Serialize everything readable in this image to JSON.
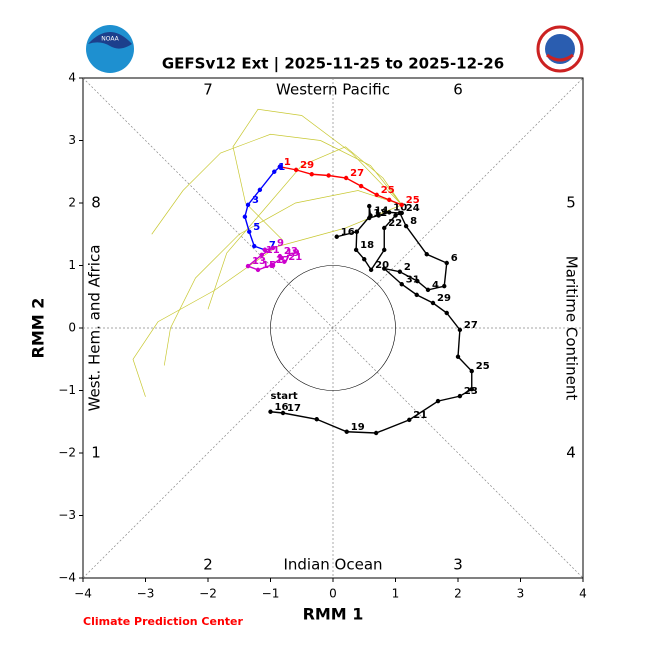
{
  "chart_data": {
    "type": "line",
    "title": "GEFSv12 Ext | 2025-11-25 to 2025-12-26",
    "xlabel": "RMM 1",
    "ylabel": "RMM 2",
    "xlim": [
      -4,
      4
    ],
    "ylim": [
      -4,
      4
    ],
    "xticks": [
      {
        "value": -4,
        "label": "−4"
      },
      {
        "value": -3,
        "label": "−3"
      },
      {
        "value": -2,
        "label": "−2"
      },
      {
        "value": -1,
        "label": "−1"
      },
      0,
      1,
      2,
      3,
      4
    ],
    "yticks": [
      {
        "value": -4,
        "label": "−4"
      },
      {
        "value": -3,
        "label": "−3"
      },
      {
        "value": -2,
        "label": "−2"
      },
      {
        "value": -1,
        "label": "−1"
      },
      0,
      1,
      2,
      3,
      4
    ],
    "regions": [
      "Western Pacific",
      "Maritime Continent",
      "Indian Ocean",
      "West. Hem. and Africa"
    ],
    "phases": [
      "1",
      "2",
      "3",
      "4",
      "5",
      "6",
      "7",
      "8"
    ],
    "start_label": "start",
    "footer": "Climate Prediction Center",
    "ensemble_color": "#c8c832",
    "ensemble": [
      {
        "x": [
          1.1,
          0.6,
          -0.2,
          -1.0,
          -1.8,
          -2.4,
          -2.9
        ],
        "y": [
          1.97,
          2.6,
          3.0,
          3.1,
          2.8,
          2.2,
          1.5
        ]
      },
      {
        "x": [
          1.1,
          0.4,
          -0.6,
          -1.5,
          -2.2,
          -2.6,
          -2.7
        ],
        "y": [
          1.97,
          2.2,
          2.0,
          1.5,
          0.8,
          0.0,
          -0.6
        ]
      },
      {
        "x": [
          1.1,
          0.3,
          -0.5,
          -1.2,
          -1.6,
          -1.4,
          -0.8
        ],
        "y": [
          1.97,
          2.8,
          3.4,
          3.5,
          2.9,
          2.0,
          1.4
        ]
      },
      {
        "x": [
          1.1,
          0.8,
          0.2,
          -0.5,
          -1.1,
          -1.7,
          -2.0
        ],
        "y": [
          1.97,
          2.4,
          2.9,
          2.6,
          1.9,
          1.2,
          0.3
        ]
      },
      {
        "x": [
          1.1,
          0.2,
          -0.9,
          -1.9,
          -2.8,
          -3.2,
          -3.0
        ],
        "y": [
          1.97,
          1.6,
          1.3,
          0.6,
          0.1,
          -0.5,
          -1.1
        ]
      }
    ],
    "series": [
      {
        "color": "#000000",
        "x": [
          -1.0,
          -0.8,
          -0.26,
          0.22,
          0.69,
          1.22,
          1.68,
          2.03,
          2.22,
          2.22,
          2.0,
          2.03,
          1.82,
          1.6,
          1.34,
          1.1,
          0.82,
          1.07,
          1.35,
          1.52,
          1.78,
          1.82,
          1.5,
          1.17,
          1.07,
          0.9,
          0.73,
          0.58,
          0.58,
          0.6,
          0.38,
          0.06,
          0.38,
          0.37,
          0.5,
          0.61,
          0.82,
          0.82,
          1.0,
          1.1
        ],
        "y": [
          -1.34,
          -1.36,
          -1.46,
          -1.66,
          -1.68,
          -1.47,
          -1.17,
          -1.09,
          -0.98,
          -0.69,
          -0.46,
          -0.03,
          0.24,
          0.4,
          0.53,
          0.7,
          0.95,
          0.9,
          0.75,
          0.61,
          0.67,
          1.04,
          1.18,
          1.63,
          1.84,
          1.85,
          1.8,
          1.76,
          1.95,
          1.8,
          1.54,
          1.46,
          1.54,
          1.25,
          1.1,
          0.93,
          1.25,
          1.6,
          1.8,
          1.84
        ],
        "labels": [
          "16",
          "17",
          null,
          "19",
          null,
          "21",
          null,
          "23",
          null,
          "25",
          null,
          "27",
          null,
          "29",
          null,
          "31",
          null,
          "2",
          null,
          "4",
          null,
          "6",
          null,
          "8",
          null,
          "10",
          null,
          "12",
          null,
          "14",
          null,
          "16",
          null,
          "18",
          null,
          "20",
          null,
          "22",
          null,
          "24"
        ]
      },
      {
        "color": "#ff0000",
        "x": [
          1.1,
          0.9,
          0.7,
          0.45,
          0.21,
          -0.07,
          -0.34,
          -0.59,
          -0.85
        ],
        "y": [
          1.97,
          2.05,
          2.13,
          2.27,
          2.4,
          2.44,
          2.46,
          2.53,
          2.58
        ],
        "labels": [
          "25",
          null,
          "25",
          null,
          "27",
          null,
          null,
          "29",
          "1"
        ]
      },
      {
        "color": "#0000ff",
        "x": [
          -0.85,
          -0.94,
          -1.17,
          -1.36,
          -1.41,
          -1.34,
          -1.26,
          -1.09
        ],
        "y": [
          2.58,
          2.5,
          2.21,
          1.97,
          1.78,
          1.54,
          1.31,
          1.25
        ],
        "labels": [
          null,
          "1",
          null,
          "3",
          null,
          "5",
          null,
          "7"
        ]
      },
      {
        "color": "#cc00cc",
        "x": [
          -1.09,
          -0.96,
          -1.14,
          -1.36,
          -1.2,
          -0.98,
          -0.82,
          -0.78,
          -0.85
        ],
        "y": [
          1.25,
          1.28,
          1.17,
          0.99,
          0.93,
          1.01,
          1.12,
          1.06,
          1.15
        ],
        "labels": [
          null,
          "9",
          "11",
          "13",
          "15",
          "17",
          "19",
          "21",
          "23"
        ]
      }
    ]
  }
}
